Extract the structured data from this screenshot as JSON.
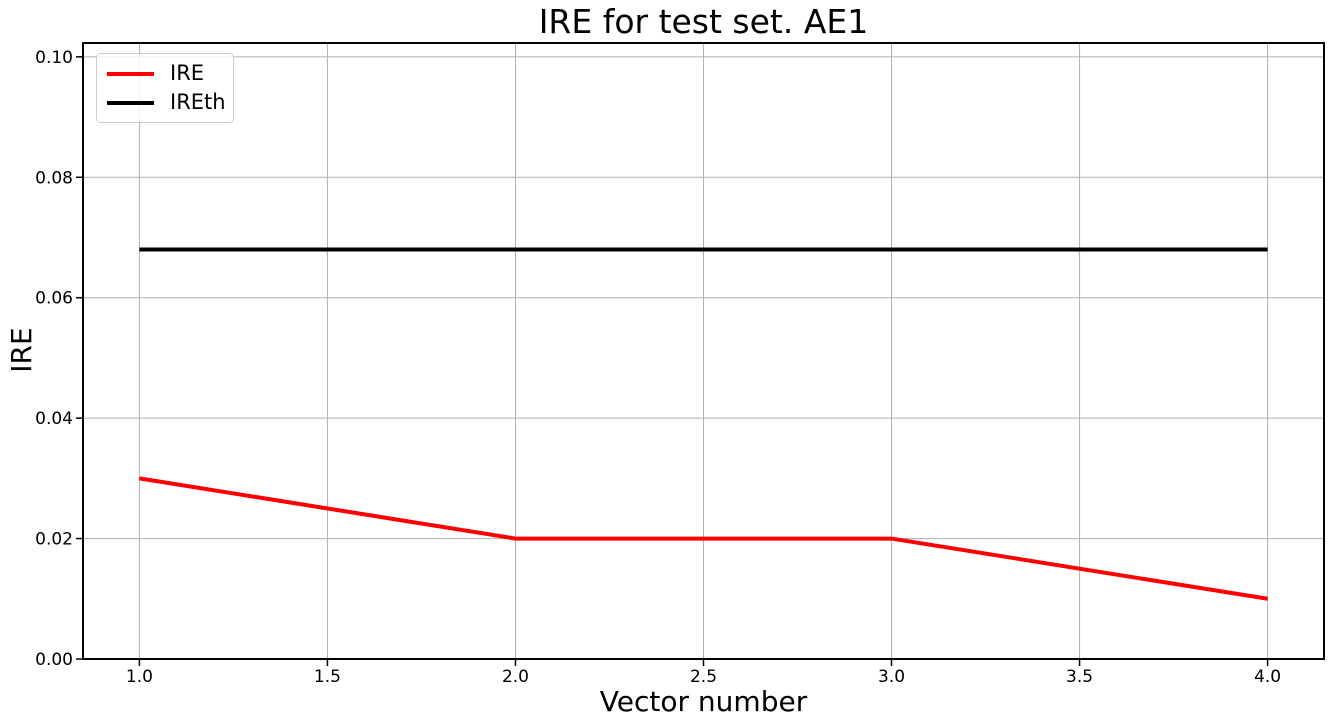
{
  "figure": {
    "background_color": "#ffffff"
  },
  "chart_data": {
    "type": "line",
    "title": "IRE for test set. AE1",
    "xlabel": "Vector number",
    "ylabel": "IRE",
    "x": [
      1,
      2,
      3,
      4
    ],
    "series": [
      {
        "name": "IRE",
        "color": "#ff0000",
        "values": [
          0.03,
          0.02,
          0.02,
          0.01
        ]
      },
      {
        "name": "IREth",
        "color": "#000000",
        "values": [
          0.068,
          0.068,
          0.068,
          0.068
        ]
      }
    ],
    "xlim": [
      0.85,
      4.15
    ],
    "ylim": [
      0.0,
      0.1023
    ],
    "xtick_values": [
      1.0,
      1.5,
      2.0,
      2.5,
      3.0,
      3.5,
      4.0
    ],
    "xtick_labels": [
      "1.0",
      "1.5",
      "2.0",
      "2.5",
      "3.0",
      "3.5",
      "4.0"
    ],
    "ytick_values": [
      0.0,
      0.02,
      0.04,
      0.06,
      0.08,
      0.1
    ],
    "ytick_labels": [
      "0.00",
      "0.02",
      "0.04",
      "0.06",
      "0.08",
      "0.10"
    ],
    "grid": true,
    "legend_position": "upper left",
    "style": {
      "grid_color": "#b0b0b0",
      "spine_color": "#000000",
      "tick_color": "#000000",
      "line_width": 4
    }
  }
}
